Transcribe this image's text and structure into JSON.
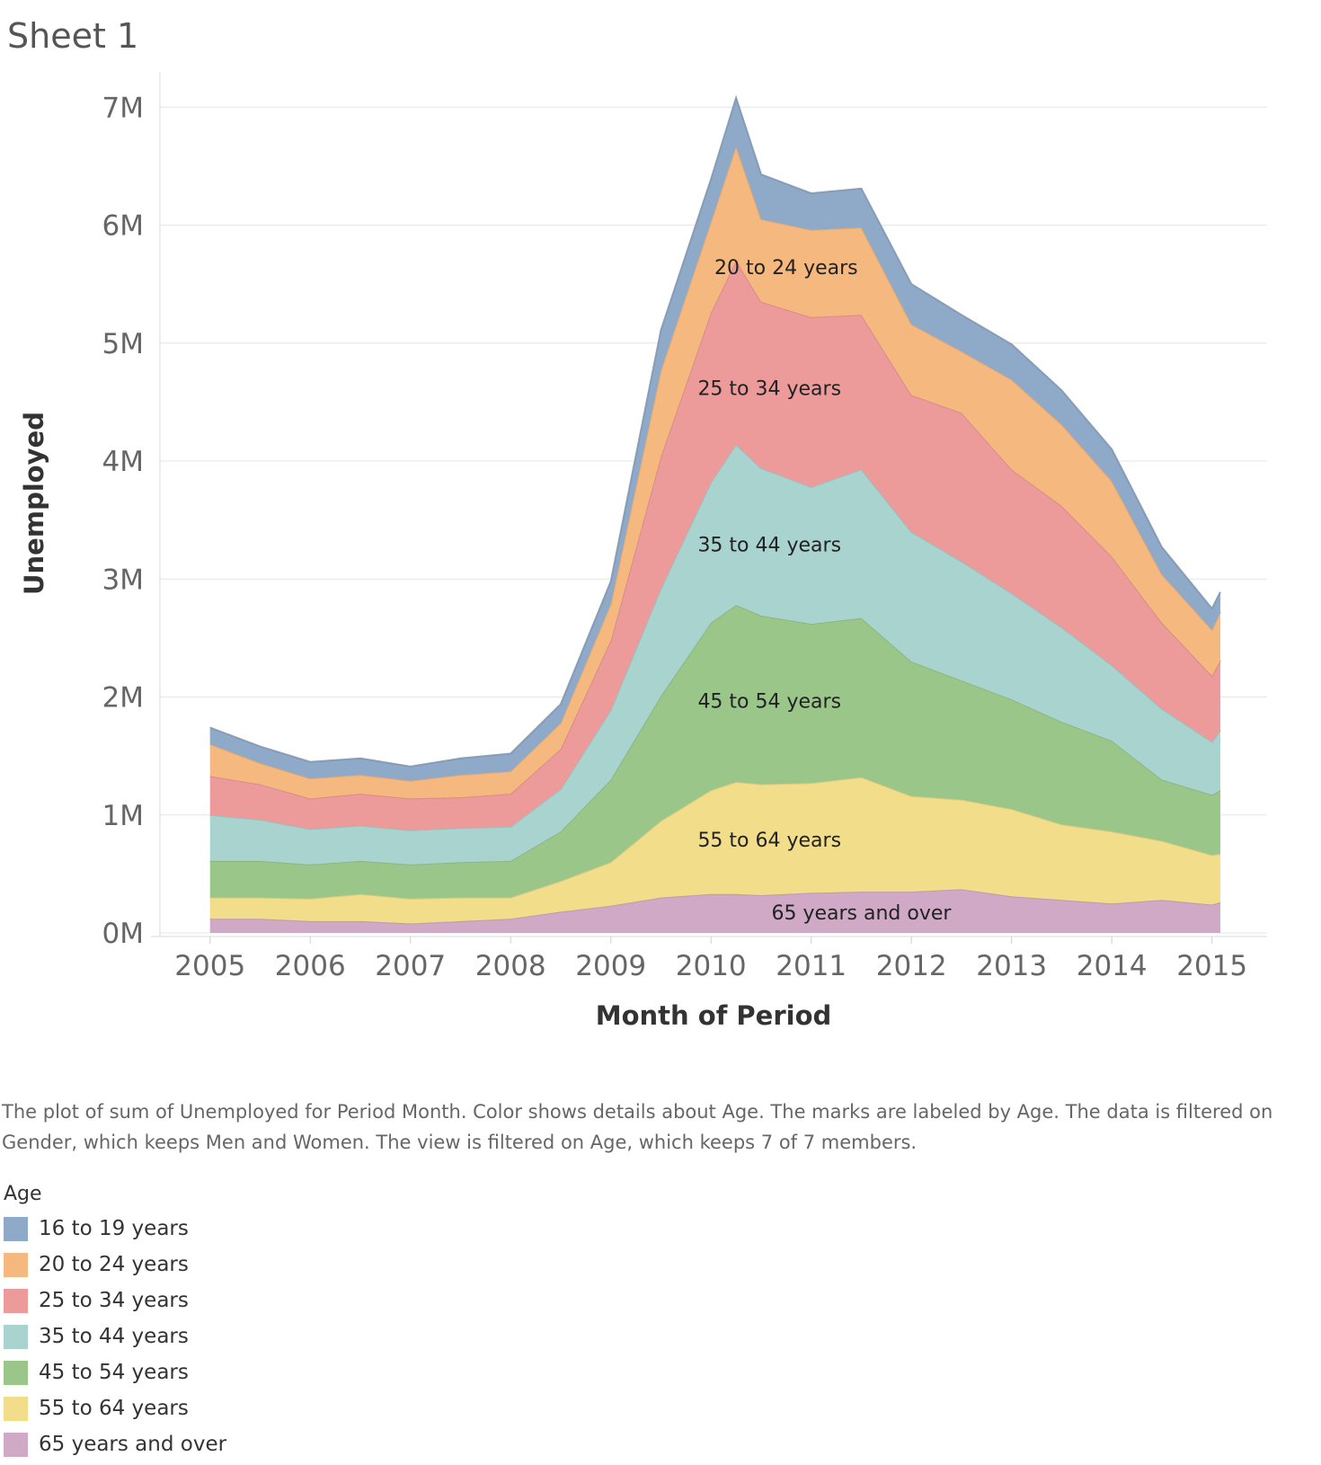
{
  "sheet": {
    "title": "Sheet 1"
  },
  "caption": "The plot of sum of Unemployed for Period Month.  Color shows details about Age.  The marks are labeled by Age. The data is filtered on Gender, which keeps Men and Women. The view is filtered on Age, which keeps 7 of 7 members.",
  "legend": {
    "title": "Age",
    "items": [
      {
        "label": "16 to 19 years",
        "color": "#8fa9c8"
      },
      {
        "label": "20 to 24 years",
        "color": "#f5b97f"
      },
      {
        "label": "25 to 34 years",
        "color": "#ec9a9a"
      },
      {
        "label": "35 to 44 years",
        "color": "#a9d3cf"
      },
      {
        "label": "45 to 54 years",
        "color": "#9bc68a"
      },
      {
        "label": "55 to 64 years",
        "color": "#f2dd8a"
      },
      {
        "label": "65 years and over",
        "color": "#cfa9c6"
      }
    ]
  },
  "chart_data": {
    "type": "area",
    "stacked": true,
    "xlabel": "Month of Period",
    "ylabel": "Unemployed",
    "x_ticks": [
      "2005",
      "2006",
      "2007",
      "2008",
      "2009",
      "2010",
      "2011",
      "2012",
      "2013",
      "2014",
      "2015"
    ],
    "y_ticks": [
      "0M",
      "1M",
      "2M",
      "3M",
      "4M",
      "5M",
      "6M",
      "7M"
    ],
    "ylim": [
      0,
      7200000
    ],
    "xlim": [
      "2004-07",
      "2015-07"
    ],
    "grid": "horizontal",
    "x": [
      "2005-01",
      "2005-07",
      "2006-01",
      "2006-07",
      "2007-01",
      "2007-07",
      "2008-01",
      "2008-07",
      "2009-01",
      "2009-07",
      "2010-01",
      "2010-04",
      "2010-07",
      "2011-01",
      "2011-07",
      "2012-01",
      "2012-07",
      "2013-01",
      "2013-07",
      "2014-01",
      "2014-07",
      "2015-01",
      "2015-02"
    ],
    "series": [
      {
        "name": "65 years and over",
        "values": [
          120000,
          120000,
          100000,
          100000,
          80000,
          100000,
          120000,
          180000,
          230000,
          300000,
          330000,
          330000,
          320000,
          340000,
          350000,
          350000,
          370000,
          310000,
          280000,
          250000,
          280000,
          240000,
          260000
        ]
      },
      {
        "name": "55 to 64 years",
        "values": [
          180000,
          180000,
          190000,
          230000,
          210000,
          200000,
          180000,
          260000,
          370000,
          650000,
          880000,
          950000,
          940000,
          930000,
          970000,
          810000,
          760000,
          740000,
          640000,
          610000,
          500000,
          420000,
          410000
        ]
      },
      {
        "name": "45 to 54 years",
        "values": [
          310000,
          310000,
          290000,
          280000,
          290000,
          300000,
          310000,
          420000,
          700000,
          1060000,
          1420000,
          1500000,
          1430000,
          1350000,
          1350000,
          1140000,
          1010000,
          930000,
          870000,
          770000,
          520000,
          510000,
          540000
        ]
      },
      {
        "name": "35 to 44 years",
        "values": [
          390000,
          350000,
          300000,
          300000,
          290000,
          290000,
          290000,
          360000,
          590000,
          910000,
          1190000,
          1360000,
          1250000,
          1160000,
          1260000,
          1100000,
          1010000,
          900000,
          800000,
          640000,
          600000,
          450000,
          510000
        ]
      },
      {
        "name": "25 to 34 years",
        "values": [
          330000,
          300000,
          260000,
          270000,
          270000,
          260000,
          280000,
          340000,
          590000,
          1120000,
          1440000,
          1560000,
          1410000,
          1440000,
          1310000,
          1160000,
          1260000,
          1050000,
          1030000,
          920000,
          730000,
          560000,
          590000
        ]
      },
      {
        "name": "20 to 24 years",
        "values": [
          270000,
          180000,
          170000,
          160000,
          150000,
          190000,
          190000,
          220000,
          310000,
          730000,
          770000,
          970000,
          700000,
          740000,
          740000,
          600000,
          520000,
          760000,
          690000,
          640000,
          410000,
          390000,
          410000
        ]
      },
      {
        "name": "16 to 19 years",
        "values": [
          140000,
          140000,
          140000,
          140000,
          120000,
          140000,
          150000,
          160000,
          190000,
          340000,
          360000,
          410000,
          380000,
          310000,
          330000,
          340000,
          310000,
          300000,
          290000,
          270000,
          230000,
          180000,
          170000
        ]
      }
    ],
    "annotations": [
      {
        "text": "20 to 24 years",
        "x": "2010-10",
        "series": "20 to 24 years"
      },
      {
        "text": "25 to 34 years",
        "x": "2010-08",
        "series": "25 to 34 years"
      },
      {
        "text": "35 to 44 years",
        "x": "2010-08",
        "series": "35 to 44 years"
      },
      {
        "text": "45 to 54 years",
        "x": "2010-08",
        "series": "45 to 54 years"
      },
      {
        "text": "55 to 64 years",
        "x": "2010-08",
        "series": "55 to 64 years"
      },
      {
        "text": "65 years and over",
        "x": "2011-07",
        "series": "65 years and over"
      }
    ]
  }
}
